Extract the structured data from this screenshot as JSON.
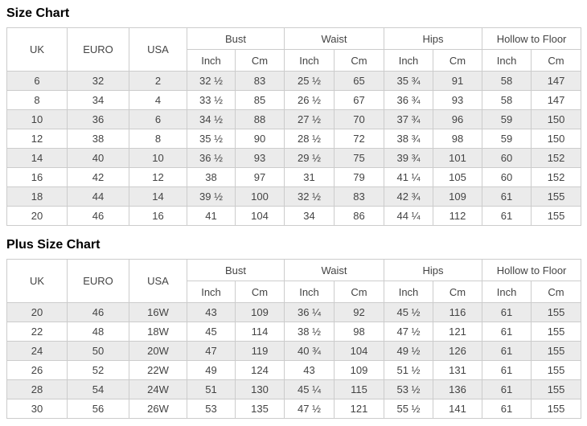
{
  "colors": {
    "row_alt": "#ebebeb",
    "border": "#cccccc",
    "text": "#444444",
    "title": "#000000",
    "background": "#ffffff"
  },
  "chart_data": [
    {
      "type": "table",
      "title": "Size Chart",
      "header_groups": [
        {
          "label": "UK",
          "rowspan": 2
        },
        {
          "label": "EURO",
          "rowspan": 2
        },
        {
          "label": "USA",
          "rowspan": 2
        },
        {
          "label": "Bust",
          "colspan": 2
        },
        {
          "label": "Waist",
          "colspan": 2
        },
        {
          "label": "Hips",
          "colspan": 2
        },
        {
          "label": "Hollow to Floor",
          "colspan": 2
        }
      ],
      "subheaders": [
        "Inch",
        "Cm",
        "Inch",
        "Cm",
        "Inch",
        "Cm",
        "Inch",
        "Cm"
      ],
      "rows": [
        [
          "6",
          "32",
          "2",
          "32 ½",
          "83",
          "25 ½",
          "65",
          "35 ¾",
          "91",
          "58",
          "147"
        ],
        [
          "8",
          "34",
          "4",
          "33 ½",
          "85",
          "26 ½",
          "67",
          "36 ¾",
          "93",
          "58",
          "147"
        ],
        [
          "10",
          "36",
          "6",
          "34 ½",
          "88",
          "27 ½",
          "70",
          "37 ¾",
          "96",
          "59",
          "150"
        ],
        [
          "12",
          "38",
          "8",
          "35 ½",
          "90",
          "28 ½",
          "72",
          "38 ¾",
          "98",
          "59",
          "150"
        ],
        [
          "14",
          "40",
          "10",
          "36 ½",
          "93",
          "29 ½",
          "75",
          "39 ¾",
          "101",
          "60",
          "152"
        ],
        [
          "16",
          "42",
          "12",
          "38",
          "97",
          "31",
          "79",
          "41 ¼",
          "105",
          "60",
          "152"
        ],
        [
          "18",
          "44",
          "14",
          "39 ½",
          "100",
          "32 ½",
          "83",
          "42 ¾",
          "109",
          "61",
          "155"
        ],
        [
          "20",
          "46",
          "16",
          "41",
          "104",
          "34",
          "86",
          "44 ¼",
          "112",
          "61",
          "155"
        ]
      ]
    },
    {
      "type": "table",
      "title": "Plus Size Chart",
      "header_groups": [
        {
          "label": "UK",
          "rowspan": 2
        },
        {
          "label": "EURO",
          "rowspan": 2
        },
        {
          "label": "USA",
          "rowspan": 2
        },
        {
          "label": "Bust",
          "colspan": 2
        },
        {
          "label": "Waist",
          "colspan": 2
        },
        {
          "label": "Hips",
          "colspan": 2
        },
        {
          "label": "Hollow to Floor",
          "colspan": 2
        }
      ],
      "subheaders": [
        "Inch",
        "Cm",
        "Inch",
        "Cm",
        "Inch",
        "Cm",
        "Inch",
        "Cm"
      ],
      "rows": [
        [
          "20",
          "46",
          "16W",
          "43",
          "109",
          "36 ¼",
          "92",
          "45 ½",
          "116",
          "61",
          "155"
        ],
        [
          "22",
          "48",
          "18W",
          "45",
          "114",
          "38 ½",
          "98",
          "47 ½",
          "121",
          "61",
          "155"
        ],
        [
          "24",
          "50",
          "20W",
          "47",
          "119",
          "40 ¾",
          "104",
          "49 ½",
          "126",
          "61",
          "155"
        ],
        [
          "26",
          "52",
          "22W",
          "49",
          "124",
          "43",
          "109",
          "51 ½",
          "131",
          "61",
          "155"
        ],
        [
          "28",
          "54",
          "24W",
          "51",
          "130",
          "45 ¼",
          "115",
          "53 ½",
          "136",
          "61",
          "155"
        ],
        [
          "30",
          "56",
          "26W",
          "53",
          "135",
          "47 ½",
          "121",
          "55 ½",
          "141",
          "61",
          "155"
        ]
      ]
    }
  ]
}
